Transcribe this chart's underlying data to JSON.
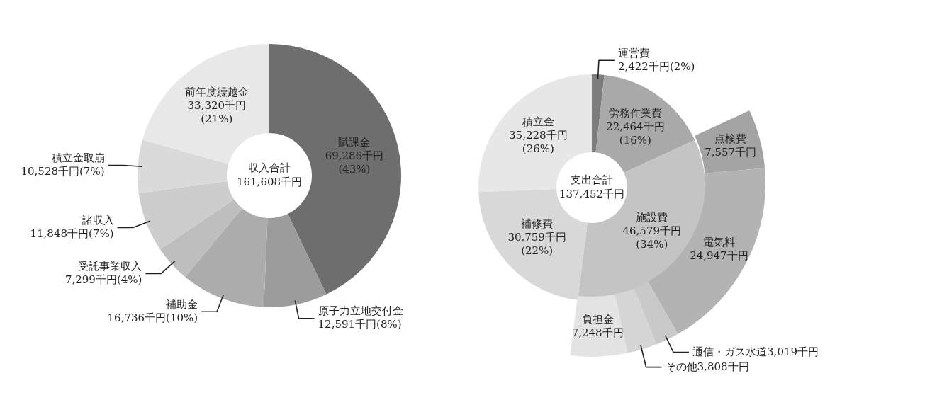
{
  "chart_data": [
    {
      "type": "donut",
      "categories": [
        "賦課金",
        "原子力立地交付金",
        "補助金",
        "受託事業収入",
        "諸収入",
        "積立金取崩",
        "前年度繰越金"
      ],
      "values": [
        69286,
        12591,
        16736,
        7299,
        11848,
        10528,
        33320
      ],
      "value_labels": [
        "69,286千円(43%)",
        "12,591千円(8%)",
        "16,736千円(10%)",
        "7,299千円(4%)",
        "11,848千円(7%)",
        "10,528千円(7%)",
        "33,320千円(21%)"
      ],
      "colors": [
        "#6e6e6e",
        "#9c9c9c",
        "#acacac",
        "#bebebe",
        "#cdcdcd",
        "#dadada",
        "#e8e8e8"
      ],
      "annotations": [
        "収入合計",
        "161,608千円"
      ]
    },
    {
      "type": "donut",
      "categories": [
        "運営費",
        "労務作業費",
        "施設費",
        "補修費",
        "積立金"
      ],
      "values": [
        2422,
        22464,
        46579,
        30759,
        35228
      ],
      "value_labels": [
        "2,422千円(2%)",
        "22,464千円(16%)",
        "46,579千円(34%)",
        "30,759千円(22%)",
        "35,228千円(26%)"
      ],
      "colors": [
        "#7c7c7c",
        "#a9a9a9",
        "#c4c4c4",
        "#d8d8d8",
        "#e7e7e7"
      ],
      "annotations": [
        "支出合計",
        "137,452千円"
      ]
    },
    {
      "type": "donut",
      "categories": [
        "点検費",
        "電気料",
        "通信・ガス水道",
        "その他",
        "負担金"
      ],
      "values": [
        7557,
        24947,
        3019,
        3808,
        7248
      ],
      "value_labels": [
        "7,557千円",
        "24,947千円",
        "3,019千円",
        "3,808千円",
        "7,248千円"
      ],
      "colors": [
        "#a3a3a3",
        "#b3b3b3",
        "#c9c9c9",
        "#d5d5d5",
        "#e3e3e3"
      ]
    }
  ]
}
